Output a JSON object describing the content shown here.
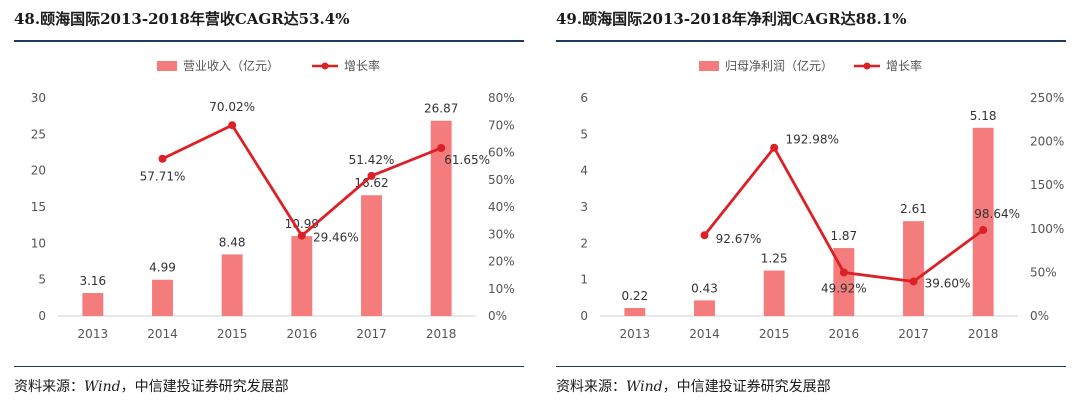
{
  "chart_data": [
    {
      "type": "bar+line",
      "title": "48.颐海国际2013-2018年营收CAGR达53.4%",
      "categories": [
        "2013",
        "2014",
        "2015",
        "2016",
        "2017",
        "2018"
      ],
      "series": [
        {
          "name": "营业收入（亿元）",
          "type": "bar",
          "axis": "left",
          "values": [
            3.16,
            4.99,
            8.48,
            10.99,
            16.62,
            26.87
          ],
          "labels": [
            "3.16",
            "4.99",
            "8.48",
            "10.99",
            "16.62",
            "26.87"
          ]
        },
        {
          "name": "增长率",
          "type": "line",
          "axis": "right",
          "values": [
            null,
            57.71,
            70.02,
            29.46,
            51.42,
            61.65
          ],
          "labels": [
            "",
            "57.71%",
            "70.02%",
            "29.46%",
            "51.42%",
            "61.65%"
          ]
        }
      ],
      "left_axis": {
        "ylim": [
          0,
          30
        ],
        "ticks": [
          "0",
          "5",
          "10",
          "15",
          "20",
          "25",
          "30"
        ]
      },
      "right_axis": {
        "ylim": [
          0,
          80
        ],
        "ticks": [
          "0%",
          "10%",
          "20%",
          "30%",
          "40%",
          "50%",
          "60%",
          "70%",
          "80%"
        ]
      },
      "legend": "top-center",
      "grid": false,
      "source_label": "资料来源：",
      "source_italic": "Wind",
      "source_rest": "，中信建投证券研究发展部"
    },
    {
      "type": "bar+line",
      "title": "49.颐海国际2013-2018年净利润CAGR达88.1%",
      "categories": [
        "2013",
        "2014",
        "2015",
        "2016",
        "2017",
        "2018"
      ],
      "series": [
        {
          "name": "归母净利润（亿元）",
          "type": "bar",
          "axis": "left",
          "values": [
            0.22,
            0.43,
            1.25,
            1.87,
            2.61,
            5.18
          ],
          "labels": [
            "0.22",
            "0.43",
            "1.25",
            "1.87",
            "2.61",
            "5.18"
          ]
        },
        {
          "name": "增长率",
          "type": "line",
          "axis": "right",
          "values": [
            null,
            92.67,
            192.98,
            49.92,
            39.6,
            98.64
          ],
          "labels": [
            "",
            "92.67%",
            "192.98%",
            "49.92%",
            "39.60%",
            "98.64%"
          ]
        }
      ],
      "left_axis": {
        "ylim": [
          0,
          6
        ],
        "ticks": [
          "0",
          "1",
          "2",
          "3",
          "4",
          "5",
          "6"
        ]
      },
      "right_axis": {
        "ylim": [
          0,
          250
        ],
        "ticks": [
          "0%",
          "50%",
          "100%",
          "150%",
          "200%",
          "250%"
        ]
      },
      "legend": "top-center",
      "grid": false,
      "source_label": "资料来源：",
      "source_italic": "Wind",
      "source_rest": "，中信建投证券研究发展部"
    }
  ],
  "colors": {
    "bar": "#f47c7c",
    "line": "#dd1f26",
    "axis_text": "#555555",
    "rule": "#1f3a5a"
  }
}
